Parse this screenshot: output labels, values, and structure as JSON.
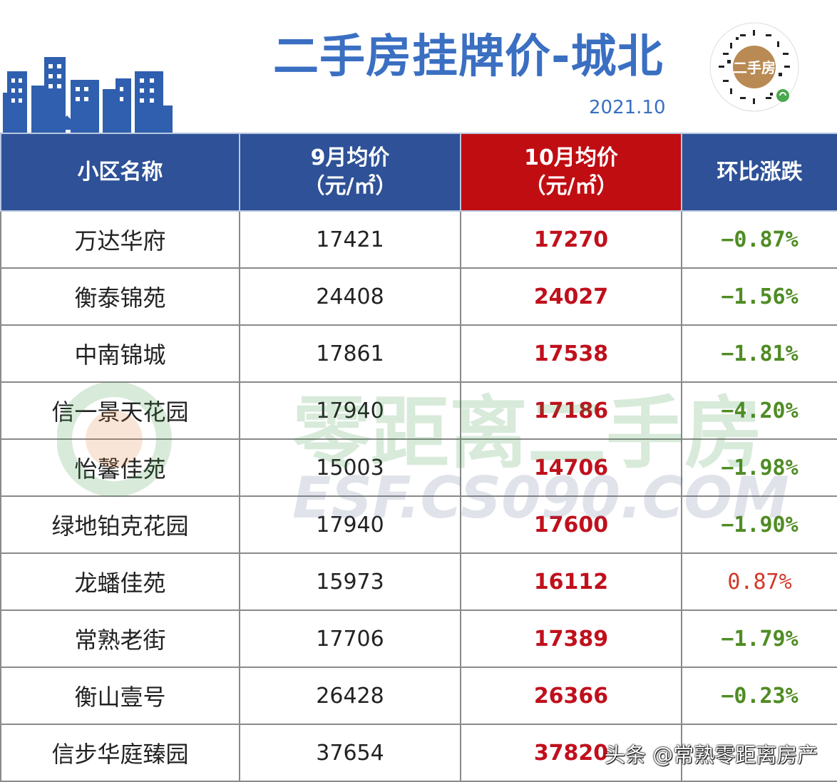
{
  "header": {
    "title": "二手房挂牌价-城北",
    "date": "2021.10",
    "qr_badge_text": "二手房"
  },
  "table": {
    "columns": [
      {
        "line1": "小区名称",
        "line2": ""
      },
      {
        "line1": "9月均价",
        "line2": "（元/㎡）"
      },
      {
        "line1": "10月均价",
        "line2": "（元/㎡）"
      },
      {
        "line1": "环比涨跌",
        "line2": ""
      }
    ],
    "rows": [
      {
        "name": "万达华府",
        "sep": "17421",
        "oct": "17270",
        "change": "−0.87%",
        "dir": "down"
      },
      {
        "name": "衡泰锦苑",
        "sep": "24408",
        "oct": "24027",
        "change": "−1.56%",
        "dir": "down"
      },
      {
        "name": "中南锦城",
        "sep": "17861",
        "oct": "17538",
        "change": "−1.81%",
        "dir": "down"
      },
      {
        "name": "信一景天花园",
        "sep": "17940",
        "oct": "17186",
        "change": "−4.20%",
        "dir": "down"
      },
      {
        "name": "怡馨佳苑",
        "sep": "15003",
        "oct": "14706",
        "change": "−1.98%",
        "dir": "down"
      },
      {
        "name": "绿地铂克花园",
        "sep": "17940",
        "oct": "17600",
        "change": "−1.90%",
        "dir": "down"
      },
      {
        "name": "龙蟠佳苑",
        "sep": "15973",
        "oct": "16112",
        "change": "0.87%",
        "dir": "up"
      },
      {
        "name": "常熟老街",
        "sep": "17706",
        "oct": "17389",
        "change": "−1.79%",
        "dir": "down"
      },
      {
        "name": "衡山壹号",
        "sep": "26428",
        "oct": "26366",
        "change": "−0.23%",
        "dir": "down"
      },
      {
        "name": "信步华庭臻园",
        "sep": "37654",
        "oct": "37820",
        "change": "",
        "dir": "up"
      }
    ]
  },
  "watermark": {
    "line1": "零距离二手房",
    "line2": "ESF.CS090.COM"
  },
  "credit": "头条 @常熟零距离房产",
  "colors": {
    "header_blue": "#2e5197",
    "highlight_red": "#c00d12",
    "down_green": "#4f8c24",
    "up_red": "#d03a2a"
  }
}
